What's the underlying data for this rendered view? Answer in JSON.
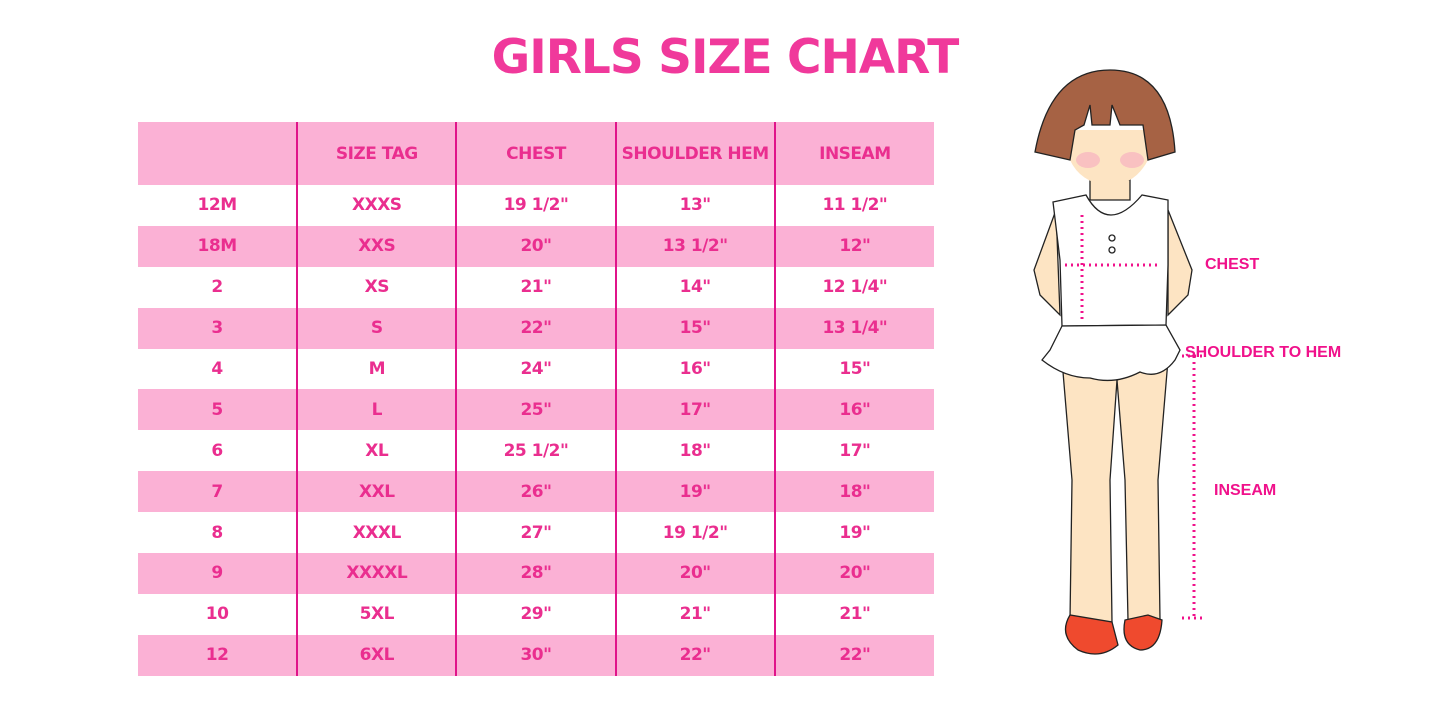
{
  "title": "GIRLS SIZE CHART",
  "table": {
    "headers": [
      "",
      "SIZE TAG",
      "CHEST",
      "SHOULDER HEM",
      "INSEAM"
    ],
    "rows": [
      [
        "12M",
        "XXXS",
        "19 1/2\"",
        "13\"",
        "11 1/2\""
      ],
      [
        "18M",
        "XXS",
        "20\"",
        "13 1/2\"",
        "12\""
      ],
      [
        "2",
        "XS",
        "21\"",
        "14\"",
        "12 1/4\""
      ],
      [
        "3",
        "S",
        "22\"",
        "15\"",
        "13 1/4\""
      ],
      [
        "4",
        "M",
        "24\"",
        "16\"",
        "15\""
      ],
      [
        "5",
        "L",
        "25\"",
        "17\"",
        "16\""
      ],
      [
        "6",
        "XL",
        "25 1/2\"",
        "18\"",
        "17\""
      ],
      [
        "7",
        "XXL",
        "26\"",
        "19\"",
        "18\""
      ],
      [
        "8",
        "XXXL",
        "27\"",
        "19 1/2\"",
        "19\""
      ],
      [
        "9",
        "XXXXL",
        "28\"",
        "20\"",
        "20\""
      ],
      [
        "10",
        "5XL",
        "29\"",
        "21\"",
        "21\""
      ],
      [
        "12",
        "6XL",
        "30\"",
        "22\"",
        "22\""
      ]
    ]
  },
  "figure": {
    "labels": {
      "chest": "CHEST",
      "shoulder_to_hem": "SHOULDER TO HEM",
      "inseam": "INSEAM"
    }
  },
  "colors": {
    "accent": "#f0399b",
    "row_fill": "#fbb1d5",
    "divider": "#e0148a"
  }
}
